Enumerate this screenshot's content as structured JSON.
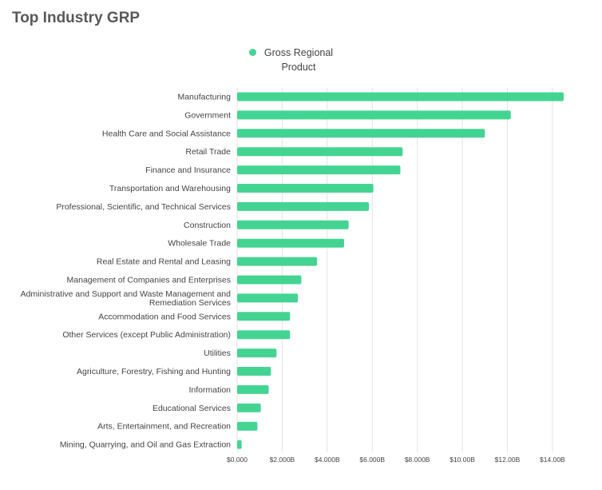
{
  "title": "Top Industry GRP",
  "colors": {
    "bar": "#44d492",
    "grid": "#e3e3e3",
    "text": "#444444"
  },
  "chart_data": {
    "type": "bar",
    "orientation": "horizontal",
    "title": "Top Industry GRP",
    "legend": {
      "position": "top",
      "entries": [
        "Gross Regional Product"
      ]
    },
    "categories": [
      "Manufacturing",
      "Government",
      "Health Care and Social Assistance",
      "Retail Trade",
      "Finance and Insurance",
      "Transportation and Warehousing",
      "Professional, Scientific, and Technical Services",
      "Construction",
      "Wholesale Trade",
      "Real Estate and Rental and Leasing",
      "Management of Companies and Enterprises",
      "Administrative and Support and Waste Management and Remediation Services",
      "Accommodation and Food Services",
      "Other Services (except Public Administration)",
      "Utilities",
      "Agriculture, Forestry, Fishing and Hunting",
      "Information",
      "Educational Services",
      "Arts, Entertainment, and Recreation",
      "Mining, Quarrying, and Oil and Gas Extraction"
    ],
    "category_label_lines": {
      "Administrative and Support and Waste Management and Remediation Services": [
        "Administrative and Support and Waste Management and",
        "Remediation Services"
      ]
    },
    "series": [
      {
        "name": "Gross Regional Product",
        "values": [
          14.5,
          12.15,
          11.0,
          7.35,
          7.25,
          6.05,
          5.85,
          4.95,
          4.75,
          3.55,
          2.85,
          2.7,
          2.35,
          2.35,
          1.75,
          1.5,
          1.4,
          1.05,
          0.9,
          0.2
        ]
      }
    ],
    "unit": "billions USD",
    "xlim": [
      0,
      14.5
    ],
    "xticks": [
      0,
      2,
      4,
      6,
      8,
      10,
      12,
      14
    ],
    "xtick_labels": [
      "$0.000",
      "$2.000B",
      "$4.000B",
      "$6.000B",
      "$8.000B",
      "$10.00B",
      "$12.00B",
      "$14.00B"
    ],
    "grid": true
  }
}
